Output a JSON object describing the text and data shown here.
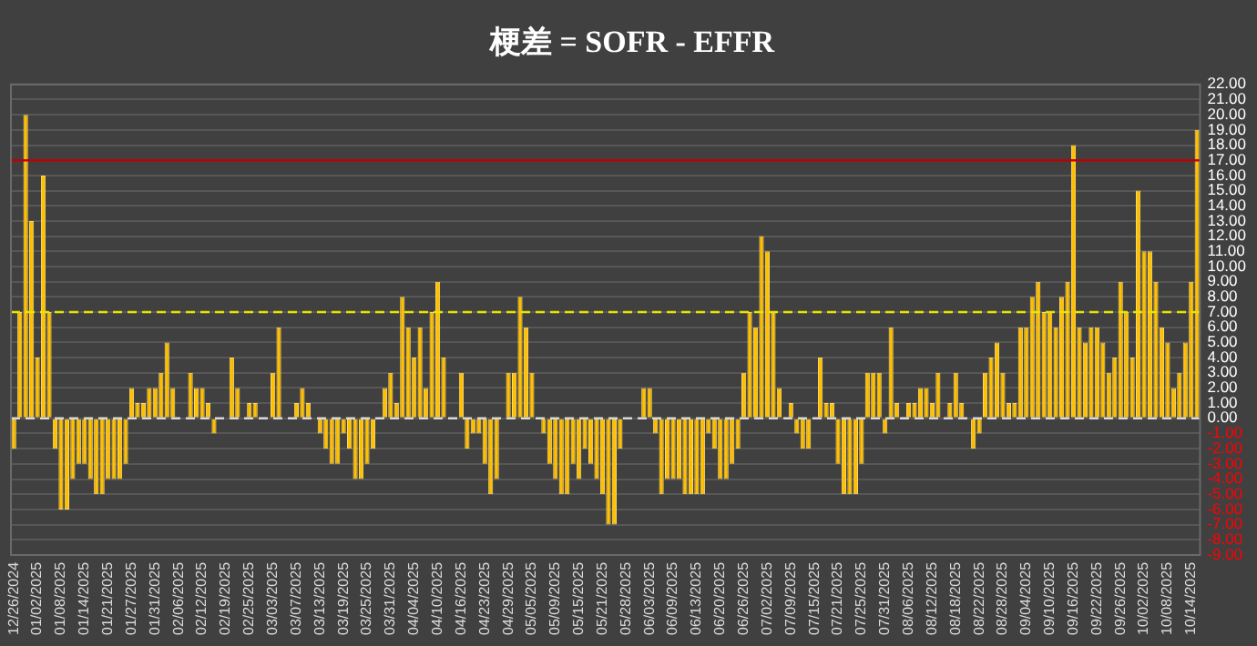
{
  "chart_data": {
    "type": "bar",
    "title": "梗差 = SOFR - EFFR",
    "categories": [
      "12/26/2024",
      null,
      null,
      null,
      "01/02/2025",
      null,
      null,
      null,
      "01/08/2025",
      null,
      null,
      null,
      "01/14/2025",
      null,
      null,
      null,
      "01/21/2025",
      null,
      null,
      null,
      "01/27/2025",
      null,
      null,
      null,
      "01/31/2025",
      null,
      null,
      null,
      "02/06/2025",
      null,
      null,
      null,
      "02/12/2025",
      null,
      null,
      null,
      "02/19/2025",
      null,
      null,
      null,
      "02/25/2025",
      null,
      null,
      null,
      "03/03/2025",
      null,
      null,
      null,
      "03/07/2025",
      null,
      null,
      null,
      "03/13/2025",
      null,
      null,
      null,
      "03/19/2025",
      null,
      null,
      null,
      "03/25/2025",
      null,
      null,
      null,
      "03/31/2025",
      null,
      null,
      null,
      "04/04/2025",
      null,
      null,
      null,
      "04/10/2025",
      null,
      null,
      null,
      "04/16/2025",
      null,
      null,
      null,
      "04/23/2025",
      null,
      null,
      null,
      "04/29/2025",
      null,
      null,
      null,
      "05/05/2025",
      null,
      null,
      null,
      "05/09/2025",
      null,
      null,
      null,
      "05/15/2025",
      null,
      null,
      null,
      "05/21/2025",
      null,
      null,
      null,
      "05/28/2025",
      null,
      null,
      null,
      "06/03/2025",
      null,
      null,
      null,
      "06/09/2025",
      null,
      null,
      null,
      "06/13/2025",
      null,
      null,
      null,
      "06/20/2025",
      null,
      null,
      null,
      "06/26/2025",
      null,
      null,
      null,
      "07/02/2025",
      null,
      null,
      null,
      "07/09/2025",
      null,
      null,
      null,
      "07/15/2025",
      null,
      null,
      null,
      "07/21/2025",
      null,
      null,
      null,
      "07/25/2025",
      null,
      null,
      null,
      "07/31/2025",
      null,
      null,
      null,
      "08/06/2025",
      null,
      null,
      null,
      "08/12/2025",
      null,
      null,
      null,
      "08/18/2025",
      null,
      null,
      null,
      "08/22/2025",
      null,
      null,
      null,
      "08/28/2025",
      null,
      null,
      null,
      "09/04/2025",
      null,
      null,
      null,
      "09/10/2025",
      null,
      null,
      null,
      "09/16/2025",
      null,
      null,
      null,
      "09/22/2025",
      null,
      null,
      null,
      "09/26/2025",
      null,
      null,
      null,
      "10/02/2025",
      null,
      null,
      null,
      "10/08/2025",
      null,
      null,
      null,
      "10/14/2025",
      null
    ],
    "values": [
      -2,
      7,
      20,
      13,
      4,
      16,
      7,
      -2,
      -6,
      -6,
      -4,
      -3,
      -3,
      -4,
      -5,
      -5,
      -4,
      -4,
      -4,
      -3,
      2,
      1,
      1,
      2,
      2,
      3,
      5,
      2,
      0,
      0,
      3,
      2,
      2,
      1,
      -1,
      0,
      0,
      4,
      2,
      0,
      1,
      1,
      0,
      0,
      3,
      6,
      0,
      0,
      1,
      2,
      1,
      0,
      -1,
      -2,
      -3,
      -3,
      -1,
      -2,
      -4,
      -4,
      -3,
      -2,
      0,
      2,
      3,
      1,
      8,
      6,
      4,
      6,
      2,
      7,
      9,
      4,
      0,
      0,
      3,
      -2,
      -1,
      -1,
      -3,
      -5,
      -4,
      0,
      3,
      3,
      8,
      6,
      3,
      0,
      -1,
      -3,
      -4,
      -5,
      -5,
      -3,
      -4,
      -2,
      -3,
      -4,
      -5,
      -7,
      -7,
      -2,
      0,
      0,
      0,
      2,
      2,
      -1,
      -5,
      -4,
      -4,
      -4,
      -5,
      -5,
      -5,
      -5,
      -1,
      -2,
      -4,
      -4,
      -3,
      -2,
      3,
      7,
      6,
      12,
      11,
      7,
      2,
      0,
      1,
      -1,
      -2,
      -2,
      0,
      4,
      1,
      1,
      -3,
      -5,
      -5,
      -5,
      -3,
      3,
      3,
      3,
      -1,
      6,
      1,
      0,
      1,
      1,
      2,
      2,
      1,
      3,
      0,
      1,
      3,
      1,
      0,
      -2,
      -1,
      3,
      4,
      5,
      3,
      1,
      1,
      6,
      6,
      8,
      9,
      7,
      7,
      6,
      8,
      9,
      18,
      6,
      5,
      6,
      6,
      5,
      3,
      4,
      9,
      7,
      4,
      15,
      11,
      11,
      9,
      6,
      5,
      2,
      3,
      5,
      9,
      19
    ],
    "color": "#ffc000",
    "ylim": [
      -9,
      22
    ],
    "yticks": [
      {
        "value": 22,
        "label": "22.00"
      },
      {
        "value": 21,
        "label": "21.00"
      },
      {
        "value": 20,
        "label": "20.00"
      },
      {
        "value": 19,
        "label": "19.00"
      },
      {
        "value": 18,
        "label": "18.00"
      },
      {
        "value": 17,
        "label": "17.00"
      },
      {
        "value": 16,
        "label": "16.00"
      },
      {
        "value": 15,
        "label": "15.00"
      },
      {
        "value": 14,
        "label": "14.00"
      },
      {
        "value": 13,
        "label": "13.00"
      },
      {
        "value": 12,
        "label": "12.00"
      },
      {
        "value": 11,
        "label": "11.00"
      },
      {
        "value": 10,
        "label": "10.00"
      },
      {
        "value": 9,
        "label": "9.00"
      },
      {
        "value": 8,
        "label": "8.00"
      },
      {
        "value": 7,
        "label": "7.00"
      },
      {
        "value": 6,
        "label": "6.00"
      },
      {
        "value": 5,
        "label": "5.00"
      },
      {
        "value": 4,
        "label": "4.00"
      },
      {
        "value": 3,
        "label": "3.00"
      },
      {
        "value": 2,
        "label": "2.00"
      },
      {
        "value": 1,
        "label": "1.00"
      },
      {
        "value": 0,
        "label": "0.00"
      },
      {
        "value": -1,
        "label": "-1.00"
      },
      {
        "value": -2,
        "label": "-2.00"
      },
      {
        "value": -3,
        "label": "-3.00"
      },
      {
        "value": -4,
        "label": "-4.00"
      },
      {
        "value": -5,
        "label": "-5.00"
      },
      {
        "value": -6,
        "label": "-6.00"
      },
      {
        "value": -7,
        "label": "-7.00"
      },
      {
        "value": -8,
        "label": "-8.00"
      },
      {
        "value": -9,
        "label": "-9.00"
      }
    ],
    "ref_lines": [
      {
        "axis": "y",
        "value": 17,
        "color": "#c00000",
        "line_style": "solid"
      },
      {
        "axis": "y",
        "value": 7,
        "color": "#e6e600",
        "line_style": "dashed"
      },
      {
        "axis": "y",
        "value": 0,
        "color": "#d9d9d9",
        "line_style": "dashed"
      }
    ],
    "grid": "y",
    "legend": false
  }
}
